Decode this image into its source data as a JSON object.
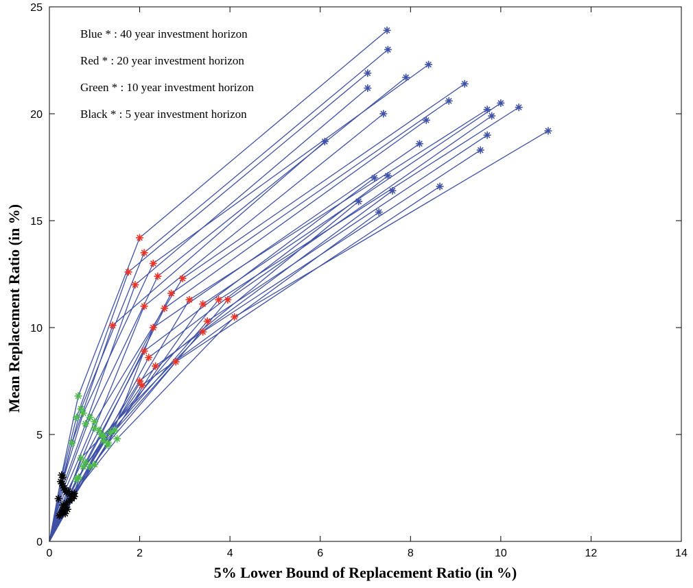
{
  "chart_data": {
    "type": "line",
    "title": "",
    "xlabel": "5% Lower Bound of Replacement Ratio (in %)",
    "ylabel": "Mean Replacement Ratio (in %)",
    "xlim": [
      0,
      14
    ],
    "ylim": [
      0,
      25
    ],
    "x_ticks": [
      "0",
      "2",
      "4",
      "6",
      "8",
      "10",
      "12",
      "14"
    ],
    "y_ticks": [
      "0",
      "5",
      "10",
      "15",
      "20",
      "25"
    ],
    "grid": false,
    "legend_position": "top-left",
    "annotations": [
      "Blue * : 40 year investment horizon",
      "Red * : 20 year investment horizon",
      "Green * : 10 year investment horizon",
      "Black * : 5 year investment horizon"
    ],
    "colors": {
      "line": "#3f51a5",
      "blue_marker": "#3f51a5",
      "red_marker": "#ee3124",
      "green_marker": "#4dbb4a",
      "black_marker": "#000000"
    },
    "series": [
      {
        "points": [
          [
            0,
            0
          ],
          [
            0.27,
            3.1
          ],
          [
            0.64,
            6.8
          ],
          [
            2.0,
            14.2
          ],
          [
            7.48,
            23.9
          ]
        ]
      },
      {
        "points": [
          [
            0,
            0
          ],
          [
            0.3,
            3.0
          ],
          [
            0.7,
            6.2
          ],
          [
            2.1,
            13.5
          ],
          [
            7.5,
            23.0
          ]
        ]
      },
      {
        "points": [
          [
            0,
            0
          ],
          [
            0.25,
            2.8
          ],
          [
            0.6,
            5.8
          ],
          [
            1.75,
            12.6
          ],
          [
            7.05,
            21.9
          ]
        ]
      },
      {
        "points": [
          [
            0,
            0
          ],
          [
            0.28,
            2.7
          ],
          [
            0.75,
            6.0
          ],
          [
            2.3,
            13.0
          ],
          [
            8.4,
            22.3
          ]
        ]
      },
      {
        "points": [
          [
            0,
            0
          ],
          [
            0.3,
            2.6
          ],
          [
            0.8,
            5.5
          ],
          [
            1.9,
            12.0
          ],
          [
            7.05,
            21.2
          ]
        ]
      },
      {
        "points": [
          [
            0,
            0
          ],
          [
            0.32,
            2.5
          ],
          [
            0.9,
            5.8
          ],
          [
            2.4,
            12.4
          ],
          [
            7.9,
            21.7
          ]
        ]
      },
      {
        "points": [
          [
            0,
            0
          ],
          [
            0.35,
            2.4
          ],
          [
            1.0,
            5.6
          ],
          [
            2.95,
            12.3
          ],
          [
            9.2,
            21.4
          ]
        ]
      },
      {
        "points": [
          [
            0,
            0
          ],
          [
            0.38,
            2.3
          ],
          [
            1.1,
            5.2
          ],
          [
            2.7,
            11.6
          ],
          [
            8.85,
            20.6
          ]
        ]
      },
      {
        "points": [
          [
            0,
            0
          ],
          [
            0.2,
            2.0
          ],
          [
            0.5,
            4.6
          ],
          [
            1.4,
            10.1
          ],
          [
            6.1,
            18.7
          ]
        ]
      },
      {
        "points": [
          [
            0,
            0
          ],
          [
            0.42,
            2.35
          ],
          [
            1.0,
            5.3
          ],
          [
            2.1,
            11.0
          ],
          [
            7.4,
            20.0
          ]
        ]
      },
      {
        "points": [
          [
            0,
            0
          ],
          [
            0.45,
            2.2
          ],
          [
            1.15,
            5.0
          ],
          [
            2.55,
            10.9
          ],
          [
            8.35,
            19.7
          ]
        ]
      },
      {
        "points": [
          [
            0,
            0
          ],
          [
            0.5,
            2.15
          ],
          [
            1.35,
            5.1
          ],
          [
            3.1,
            11.3
          ],
          [
            9.7,
            20.2
          ]
        ]
      },
      {
        "points": [
          [
            0,
            0
          ],
          [
            0.55,
            2.1
          ],
          [
            1.45,
            5.2
          ],
          [
            3.4,
            11.1
          ],
          [
            10.0,
            20.5
          ]
        ]
      },
      {
        "points": [
          [
            0,
            0
          ],
          [
            0.5,
            2.0
          ],
          [
            1.2,
            4.9
          ],
          [
            3.75,
            11.3
          ],
          [
            10.4,
            20.3
          ]
        ]
      },
      {
        "points": [
          [
            0,
            0
          ],
          [
            0.45,
            1.9
          ],
          [
            1.3,
            4.6
          ],
          [
            3.95,
            11.3
          ],
          [
            9.8,
            19.9
          ]
        ]
      },
      {
        "points": [
          [
            0,
            0
          ],
          [
            0.38,
            1.8
          ],
          [
            1.5,
            4.8
          ],
          [
            4.1,
            10.5
          ],
          [
            11.05,
            19.2
          ]
        ]
      },
      {
        "points": [
          [
            0,
            0
          ],
          [
            0.3,
            1.7
          ],
          [
            1.3,
            4.5
          ],
          [
            2.3,
            10.0
          ],
          [
            8.2,
            18.6
          ]
        ]
      },
      {
        "points": [
          [
            0,
            0
          ],
          [
            0.35,
            1.6
          ],
          [
            1.2,
            4.7
          ],
          [
            3.5,
            10.3
          ],
          [
            9.7,
            19.0
          ]
        ]
      },
      {
        "points": [
          [
            0,
            0
          ],
          [
            0.4,
            1.5
          ],
          [
            0.8,
            3.7
          ],
          [
            2.1,
            8.9
          ],
          [
            7.2,
            17.0
          ]
        ]
      },
      {
        "points": [
          [
            0,
            0
          ],
          [
            0.28,
            1.4
          ],
          [
            0.7,
            3.9
          ],
          [
            3.4,
            9.8
          ],
          [
            9.55,
            18.3
          ]
        ]
      },
      {
        "points": [
          [
            0,
            0
          ],
          [
            0.35,
            1.3
          ],
          [
            0.9,
            3.5
          ],
          [
            2.2,
            8.6
          ],
          [
            7.5,
            17.1
          ]
        ]
      },
      {
        "points": [
          [
            0,
            0
          ],
          [
            0.3,
            1.45
          ],
          [
            1.0,
            3.6
          ],
          [
            2.35,
            8.2
          ],
          [
            7.6,
            16.4
          ]
        ]
      },
      {
        "points": [
          [
            0,
            0
          ],
          [
            0.25,
            1.25
          ],
          [
            0.65,
            3.0
          ],
          [
            2.0,
            7.5
          ],
          [
            6.85,
            15.9
          ]
        ]
      },
      {
        "points": [
          [
            0,
            0
          ],
          [
            0.22,
            1.2
          ],
          [
            0.6,
            2.9
          ],
          [
            2.05,
            7.3
          ],
          [
            7.3,
            15.4
          ]
        ]
      },
      {
        "points": [
          [
            0,
            0
          ],
          [
            0.55,
            2.25
          ],
          [
            0.75,
            3.5
          ],
          [
            2.8,
            8.4
          ],
          [
            8.65,
            16.6
          ]
        ]
      }
    ]
  }
}
